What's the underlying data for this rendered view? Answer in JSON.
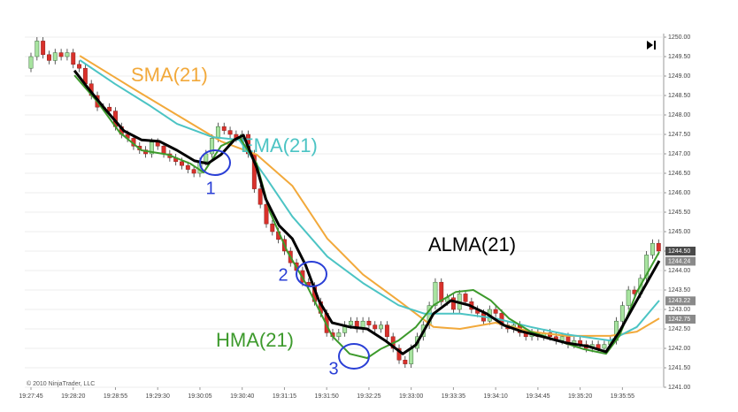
{
  "chart_data": {
    "type": "candlestick",
    "copyright": "© 2010 NinjaTrader, LLC",
    "categories": [
      "19:27:45",
      null,
      null,
      null,
      null,
      null,
      null,
      "19:28:20",
      null,
      null,
      null,
      null,
      null,
      null,
      "19:28:55",
      null,
      null,
      null,
      null,
      null,
      null,
      "19:29:30",
      null,
      null,
      null,
      null,
      null,
      null,
      "19:30:05",
      null,
      null,
      null,
      null,
      null,
      null,
      "19:30:40",
      null,
      null,
      null,
      null,
      null,
      null,
      "19:31:15",
      null,
      null,
      null,
      null,
      null,
      null,
      "19:31:50",
      null,
      null,
      null,
      null,
      null,
      null,
      "19:32:25",
      null,
      null,
      null,
      null,
      null,
      null,
      "19:33:00",
      null,
      null,
      null,
      null,
      null,
      null,
      "19:33:35",
      null,
      null,
      null,
      null,
      null,
      null,
      "19:34:10",
      null,
      null,
      null,
      null,
      null,
      null,
      "19:34:45",
      null,
      null,
      null,
      null,
      null,
      null,
      "19:35:20",
      null,
      null,
      null,
      null,
      null,
      null,
      "19:35:55",
      null,
      null,
      null,
      null,
      null,
      null
    ],
    "open": [
      1249.2,
      1249.5,
      1249.9,
      1249.55,
      1249.4,
      1249.6,
      1249.5,
      1249.6,
      1249.3,
      1249.2,
      1248.8,
      1248.5,
      1248.2,
      1248.2,
      1248.1,
      1247.7,
      1247.5,
      1247.4,
      1247.2,
      1247.1,
      1247.0,
      1247.3,
      1247.2,
      1247.0,
      1246.9,
      1246.8,
      1246.7,
      1246.6,
      1246.5,
      1246.8,
      1247.0,
      1247.4,
      1247.7,
      1247.6,
      1247.5,
      1247.4,
      1247.5,
      1247.0,
      1246.1,
      1245.7,
      1245.2,
      1245.0,
      1244.8,
      1244.5,
      1244.2,
      1244.0,
      1243.7,
      1243.6,
      1243.2,
      1242.9,
      1242.4,
      1242.3,
      1242.4,
      1242.6,
      1242.7,
      1242.5,
      1242.7,
      1242.6,
      1242.5,
      1242.6,
      1242.3,
      1242.0,
      1241.7,
      1241.6,
      1242.0,
      1242.3,
      1242.6,
      1243.1,
      1243.7,
      1243.2,
      1243.3,
      1243.0,
      1243.4,
      1243.2,
      1243.0,
      1242.9,
      1242.7,
      1243.0,
      1242.9,
      1242.6,
      1242.5,
      1242.6,
      1242.4,
      1242.3,
      1242.4,
      1242.3,
      1242.4,
      1242.3,
      1242.2,
      1242.3,
      1242.1,
      1242.2,
      1242.1,
      1242.0,
      1242.1,
      1242.0,
      1242.1,
      1242.2,
      1242.7,
      1243.1,
      1243.5,
      1243.4,
      1243.8,
      1244.4,
      1244.7
    ],
    "high": [
      1249.6,
      1250.0,
      1250.0,
      1249.65,
      1249.7,
      1249.7,
      1249.7,
      1249.7,
      1249.4,
      1249.3,
      1248.9,
      1248.6,
      1248.3,
      1248.3,
      1248.2,
      1247.8,
      1247.6,
      1247.5,
      1247.3,
      1247.2,
      1247.4,
      1247.4,
      1247.3,
      1247.1,
      1247.0,
      1246.9,
      1246.8,
      1246.7,
      1246.9,
      1247.1,
      1247.5,
      1247.8,
      1247.8,
      1247.7,
      1247.6,
      1247.6,
      1247.6,
      1247.1,
      1246.2,
      1245.8,
      1245.3,
      1245.1,
      1244.9,
      1244.6,
      1244.3,
      1244.1,
      1243.8,
      1243.7,
      1243.3,
      1243.0,
      1242.5,
      1242.5,
      1242.7,
      1242.8,
      1242.8,
      1242.8,
      1242.8,
      1242.7,
      1242.7,
      1242.7,
      1242.4,
      1242.1,
      1241.8,
      1242.1,
      1242.4,
      1242.7,
      1243.2,
      1243.8,
      1243.8,
      1243.4,
      1243.4,
      1243.5,
      1243.5,
      1243.3,
      1243.1,
      1243.0,
      1243.1,
      1243.1,
      1243.0,
      1242.7,
      1242.7,
      1242.7,
      1242.5,
      1242.5,
      1242.5,
      1242.5,
      1242.5,
      1242.4,
      1242.4,
      1242.4,
      1242.3,
      1242.3,
      1242.2,
      1242.2,
      1242.2,
      1242.2,
      1242.3,
      1242.8,
      1243.2,
      1243.6,
      1243.6,
      1243.9,
      1244.5,
      1244.8,
      1244.8
    ],
    "low": [
      1249.1,
      1249.4,
      1249.45,
      1249.3,
      1249.3,
      1249.4,
      1249.4,
      1249.2,
      1249.1,
      1248.7,
      1248.4,
      1248.1,
      1248.1,
      1248.0,
      1247.6,
      1247.4,
      1247.3,
      1247.1,
      1247.0,
      1246.9,
      1246.9,
      1247.1,
      1246.9,
      1246.8,
      1246.7,
      1246.6,
      1246.5,
      1246.4,
      1246.4,
      1246.7,
      1246.9,
      1247.3,
      1247.5,
      1247.4,
      1247.3,
      1247.3,
      1246.9,
      1246.0,
      1245.6,
      1245.1,
      1244.9,
      1244.7,
      1244.4,
      1244.1,
      1243.9,
      1243.6,
      1243.5,
      1243.1,
      1242.8,
      1242.3,
      1242.2,
      1242.2,
      1242.3,
      1242.5,
      1242.4,
      1242.4,
      1242.5,
      1242.4,
      1242.4,
      1242.2,
      1241.9,
      1241.6,
      1241.5,
      1241.5,
      1241.9,
      1242.2,
      1242.5,
      1243.0,
      1243.1,
      1243.1,
      1242.9,
      1242.9,
      1243.1,
      1242.9,
      1242.8,
      1242.6,
      1242.6,
      1242.8,
      1242.5,
      1242.4,
      1242.4,
      1242.3,
      1242.2,
      1242.2,
      1242.2,
      1242.2,
      1242.2,
      1242.1,
      1242.1,
      1242.0,
      1242.0,
      1242.0,
      1241.9,
      1241.9,
      1241.9,
      1241.9,
      1242.0,
      1242.1,
      1242.6,
      1243.0,
      1243.3,
      1243.3,
      1243.7,
      1244.3,
      1244.4
    ],
    "close": [
      1249.5,
      1249.9,
      1249.55,
      1249.4,
      1249.6,
      1249.5,
      1249.6,
      1249.3,
      1249.2,
      1248.8,
      1248.5,
      1248.2,
      1248.2,
      1248.1,
      1247.7,
      1247.5,
      1247.4,
      1247.2,
      1247.1,
      1247.0,
      1247.3,
      1247.2,
      1247.0,
      1246.9,
      1246.8,
      1246.7,
      1246.6,
      1246.5,
      1246.8,
      1247.0,
      1247.4,
      1247.7,
      1247.6,
      1247.5,
      1247.4,
      1247.5,
      1247.0,
      1246.1,
      1245.7,
      1245.2,
      1245.0,
      1244.8,
      1244.5,
      1244.2,
      1244.0,
      1243.7,
      1243.6,
      1243.2,
      1242.9,
      1242.4,
      1242.3,
      1242.4,
      1242.6,
      1242.7,
      1242.5,
      1242.7,
      1242.6,
      1242.5,
      1242.6,
      1242.3,
      1242.0,
      1241.7,
      1241.6,
      1242.0,
      1242.3,
      1242.6,
      1243.1,
      1243.7,
      1243.2,
      1243.3,
      1243.0,
      1243.4,
      1243.2,
      1243.0,
      1242.9,
      1242.7,
      1243.0,
      1242.9,
      1242.6,
      1242.5,
      1242.6,
      1242.4,
      1242.3,
      1242.4,
      1242.3,
      1242.4,
      1242.3,
      1242.2,
      1242.3,
      1242.1,
      1242.2,
      1242.1,
      1242.0,
      1242.1,
      1242.0,
      1242.1,
      1242.2,
      1242.7,
      1243.1,
      1243.5,
      1243.4,
      1243.8,
      1244.4,
      1244.7,
      1244.5
    ],
    "up_color": "#a8e4a0",
    "down_color": "#d9312b",
    "series": [
      {
        "name": "SMA(21)",
        "color": "#f2a93b",
        "x": [
          8.1,
          16.9,
          24.2,
          31.5,
          37.4,
          43.3,
          49.1,
          55,
          60.9,
          66.7,
          71.1,
          77,
          82.8,
          88.7,
          96,
          100.4,
          104.1
        ],
        "values": [
          1249.52,
          1248.68,
          1248.0,
          1247.32,
          1246.98,
          1246.18,
          1244.82,
          1243.9,
          1243.23,
          1242.55,
          1242.5,
          1242.66,
          1242.43,
          1242.32,
          1242.32,
          1242.43,
          1242.77
        ]
      },
      {
        "name": "EMA(21)",
        "color": "#4cc4c4",
        "x": [
          8.1,
          13.9,
          19.8,
          24.2,
          30.1,
          34.5,
          38.9,
          43.3,
          49.1,
          55,
          60.9,
          65.2,
          71.1,
          77,
          82.8,
          88.7,
          96,
          100.4,
          104.1
        ],
        "values": [
          1249.41,
          1248.8,
          1248.23,
          1247.77,
          1247.43,
          1247.36,
          1246.4,
          1245.39,
          1244.36,
          1243.68,
          1243.11,
          1242.89,
          1242.89,
          1242.77,
          1242.55,
          1242.36,
          1242.2,
          1242.55,
          1243.23
        ]
      },
      {
        "name": "HMA(21)",
        "color": "#3d9a2c",
        "x": [
          7.2,
          11,
          14.7,
          18.3,
          22.7,
          26.4,
          28.6,
          31.5,
          34.5,
          37.4,
          39.6,
          42.5,
          45.5,
          47.7,
          49.9,
          52.8,
          55.7,
          57.9,
          60.9,
          63.8,
          66.7,
          70.4,
          73.3,
          76.2,
          79.2,
          82.8,
          87.2,
          91.6,
          95.3,
          97.5,
          100.4,
          104.1
        ],
        "values": [
          1249.02,
          1248.34,
          1247.55,
          1247.09,
          1246.98,
          1246.75,
          1246.52,
          1247.2,
          1247.43,
          1246.75,
          1245.5,
          1244.48,
          1243.68,
          1243.0,
          1242.32,
          1241.86,
          1241.75,
          1241.98,
          1242.2,
          1242.55,
          1243.11,
          1243.45,
          1243.5,
          1243.23,
          1242.77,
          1242.43,
          1242.2,
          1241.98,
          1241.86,
          1242.32,
          1243.45,
          1244.48
        ]
      },
      {
        "name": "ALMA(21)",
        "color": "#000000",
        "x": [
          7.2,
          9.5,
          12.5,
          15.4,
          18.3,
          21.3,
          24.2,
          27.1,
          29.3,
          31.5,
          33.7,
          35.2,
          37.4,
          38.9,
          41.1,
          43.3,
          45.5,
          47.7,
          49.9,
          52.8,
          55.7,
          58.7,
          61.6,
          63.8,
          66.7,
          69.6,
          72.6,
          75.5,
          78.4,
          81.4,
          84.3,
          88.7,
          92.4,
          95.3,
          97.5,
          100.4,
          104.1
        ],
        "values": [
          1249.14,
          1248.68,
          1248.11,
          1247.59,
          1247.36,
          1247.32,
          1247.09,
          1246.82,
          1246.75,
          1246.98,
          1247.36,
          1247.48,
          1246.64,
          1245.84,
          1245.16,
          1244.82,
          1244.14,
          1243.23,
          1242.66,
          1242.55,
          1242.5,
          1242.2,
          1241.86,
          1242.09,
          1242.89,
          1243.23,
          1243.11,
          1242.89,
          1242.59,
          1242.43,
          1242.32,
          1242.14,
          1242.05,
          1241.91,
          1242.43,
          1243.23,
          1244.25
        ]
      }
    ],
    "annotations": [
      "1",
      "2",
      "3"
    ],
    "price_tags": [
      {
        "value": 1244.5,
        "label": "1244.50",
        "color": "#4a4a4a"
      },
      {
        "value": 1244.24,
        "label": "1244.24",
        "color": "#8a8a8a"
      },
      {
        "value": 1243.22,
        "label": "1243.22",
        "color": "#8a8a8a"
      },
      {
        "value": 1242.75,
        "label": "1242.75",
        "color": "#8a8a8a"
      }
    ],
    "ylim": [
      1241,
      1250
    ],
    "yticks": [
      {
        "value": 1241,
        "label": "1241.00"
      },
      {
        "value": 1241.5,
        "label": "1241.50"
      },
      {
        "value": 1242,
        "label": "1242.00"
      },
      {
        "value": 1242.5,
        "label": "1242.50"
      },
      {
        "value": 1243,
        "label": "1243.00"
      },
      {
        "value": 1243.5,
        "label": "1243.50"
      },
      {
        "value": 1244,
        "label": "1244.00"
      },
      {
        "value": 1244.5,
        "label": "1244.50"
      },
      {
        "value": 1245,
        "label": "1245.00"
      },
      {
        "value": 1245.5,
        "label": "1245.50"
      },
      {
        "value": 1246,
        "label": "1246.00"
      },
      {
        "value": 1246.5,
        "label": "1246.50"
      },
      {
        "value": 1247,
        "label": "1247.00"
      },
      {
        "value": 1247.5,
        "label": "1247.50"
      },
      {
        "value": 1248,
        "label": "1248.00"
      },
      {
        "value": 1248.5,
        "label": "1248.50"
      },
      {
        "value": 1249,
        "label": "1249.00"
      },
      {
        "value": 1249.5,
        "label": "1249.50"
      },
      {
        "value": 1250,
        "label": "1250.00"
      }
    ],
    "grid": true
  }
}
